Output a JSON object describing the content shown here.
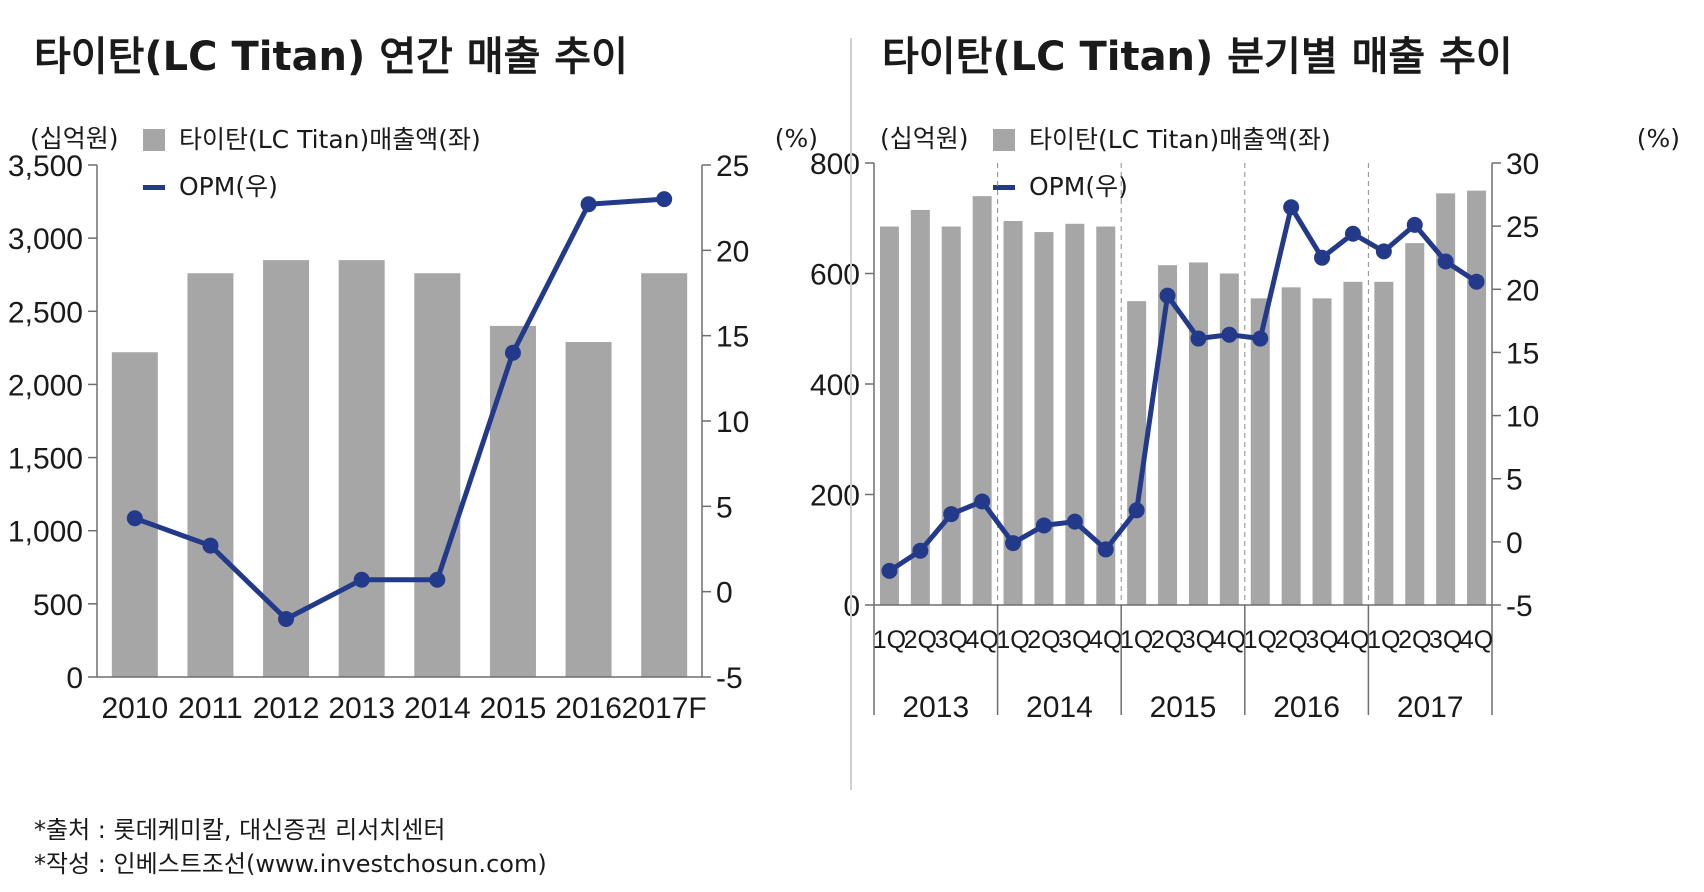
{
  "chart_data": [
    {
      "type": "bar+line",
      "title": "타이탄(LC Titan) 연간 매출 추이",
      "left_unit": "(십억원)",
      "right_unit": "(%)",
      "legend": {
        "bar": "타이탄(LC Titan)매출액(좌)",
        "line": "OPM(우)"
      },
      "categories": [
        "2010",
        "2011",
        "2012",
        "2013",
        "2014",
        "2015",
        "2016",
        "2017F"
      ],
      "series": [
        {
          "name": "타이탄(LC Titan)매출액(좌)",
          "axis": "left",
          "type": "bar",
          "values": [
            2220,
            2760,
            2850,
            2850,
            2760,
            2400,
            2290,
            2760
          ]
        },
        {
          "name": "OPM(우)",
          "axis": "right",
          "type": "line",
          "values": [
            4.3,
            2.7,
            -1.6,
            0.7,
            0.7,
            14.0,
            22.7,
            23.0
          ]
        }
      ],
      "ylim_left": [
        0,
        3500
      ],
      "yticks_left": [
        "0",
        "500",
        "1,000",
        "1,500",
        "2,000",
        "2,500",
        "3,000",
        "3,500"
      ],
      "ylim_right": [
        -5,
        25
      ],
      "yticks_right": [
        "-5",
        "0",
        "5",
        "10",
        "15",
        "20",
        "25"
      ]
    },
    {
      "type": "bar+line",
      "title": "타이탄(LC Titan) 분기별 매출 추이",
      "left_unit": "(십억원)",
      "right_unit": "(%)",
      "legend": {
        "bar": "타이탄(LC Titan)매출액(좌)",
        "line": "OPM(우)"
      },
      "categories": [
        "1Q",
        "2Q",
        "3Q",
        "4Q",
        "1Q",
        "2Q",
        "3Q",
        "4Q",
        "1Q",
        "2Q",
        "3Q",
        "4Q",
        "1Q",
        "2Q",
        "3Q",
        "4Q",
        "1Q",
        "2Q",
        "3Q",
        "4Q"
      ],
      "years": [
        "2013",
        "2014",
        "2015",
        "2016",
        "2017"
      ],
      "series": [
        {
          "name": "타이탄(LC Titan)매출액(좌)",
          "axis": "left",
          "type": "bar",
          "values": [
            685,
            715,
            685,
            740,
            695,
            675,
            690,
            685,
            550,
            615,
            620,
            600,
            555,
            575,
            555,
            585,
            585,
            655,
            745,
            750
          ]
        },
        {
          "name": "OPM(우)",
          "axis": "right",
          "type": "line",
          "values": [
            -2.3,
            -0.7,
            2.2,
            3.2,
            -0.1,
            1.3,
            1.6,
            -0.6,
            2.5,
            19.5,
            16.1,
            16.4,
            16.1,
            26.5,
            22.5,
            24.4,
            23.0,
            25.1,
            22.2,
            20.6
          ]
        }
      ],
      "ylim_left": [
        0,
        800
      ],
      "yticks_left": [
        "0",
        "200",
        "400",
        "600",
        "800"
      ],
      "ylim_right": [
        -5,
        30
      ],
      "yticks_right": [
        "-5",
        "0",
        "5",
        "10",
        "15",
        "20",
        "25",
        "30"
      ]
    }
  ],
  "footer": {
    "source": "*출처 : 롯데케미칼, 대신증권 리서치센터",
    "author": "*작성 : 인베스트조선(www.investchosun.com)"
  },
  "colors": {
    "bar": "#a6a6a6",
    "line": "#233a8b",
    "axis": "#6e6e6e",
    "text": "#1a1a1a",
    "divider": "#cfcfcf"
  }
}
